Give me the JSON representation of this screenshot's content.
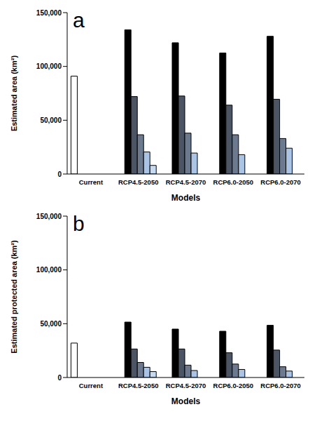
{
  "chart_data": [
    {
      "type": "bar",
      "title": "a",
      "xlabel": "Models",
      "ylabel": "Estimated area (km²)",
      "categories": [
        "Current",
        "RCP4.5-2050",
        "RCP4.5-2070",
        "RCP6.0-2050",
        "RCP6.0-2070"
      ],
      "ylim": [
        0,
        150000
      ],
      "yticks": [
        0,
        {
          "value": 50000,
          "label": "50,000"
        },
        {
          "value": 100000,
          "label": "100,000"
        },
        {
          "value": 150000,
          "label": "150,000"
        }
      ],
      "grid": false,
      "series": [
        {
          "color": "#ffffff",
          "values": [
            91000,
            null,
            null,
            null,
            null
          ]
        },
        {
          "color": "#000000",
          "values": [
            null,
            134000,
            122000,
            112500,
            128000
          ]
        },
        {
          "color": "#4b5563",
          "values": [
            null,
            72000,
            72500,
            64000,
            69500
          ]
        },
        {
          "color": "#6b7a8f",
          "values": [
            null,
            36500,
            38000,
            36500,
            33000
          ]
        },
        {
          "color": "#a9c4e4",
          "values": [
            null,
            20500,
            19500,
            18000,
            24000
          ]
        },
        {
          "color": "#c6dbf2",
          "values": [
            null,
            8000,
            null,
            null,
            null
          ]
        }
      ]
    },
    {
      "type": "bar",
      "title": "b",
      "xlabel": "Models",
      "ylabel": "Estimated protected area (km²)",
      "categories": [
        "Current",
        "RCP4.5-2050",
        "RCP4.5-2070",
        "RCP6.0-2050",
        "RCP6.0-2070"
      ],
      "ylim": [
        0,
        150000
      ],
      "yticks": [
        0,
        {
          "value": 50000,
          "label": "50,000"
        },
        {
          "value": 100000,
          "label": "100,000"
        },
        {
          "value": 150000,
          "label": "150,000"
        }
      ],
      "grid": false,
      "series": [
        {
          "color": "#ffffff",
          "values": [
            32000,
            null,
            null,
            null,
            null
          ]
        },
        {
          "color": "#000000",
          "values": [
            null,
            51500,
            45000,
            43000,
            48500
          ]
        },
        {
          "color": "#4b5563",
          "values": [
            null,
            26500,
            26500,
            23000,
            25500
          ]
        },
        {
          "color": "#6b7a8f",
          "values": [
            null,
            14000,
            11500,
            12500,
            10000
          ]
        },
        {
          "color": "#a9c4e4",
          "values": [
            null,
            9500,
            6500,
            7500,
            6000
          ]
        },
        {
          "color": "#c6dbf2",
          "values": [
            null,
            5500,
            null,
            null,
            null
          ]
        }
      ]
    }
  ]
}
